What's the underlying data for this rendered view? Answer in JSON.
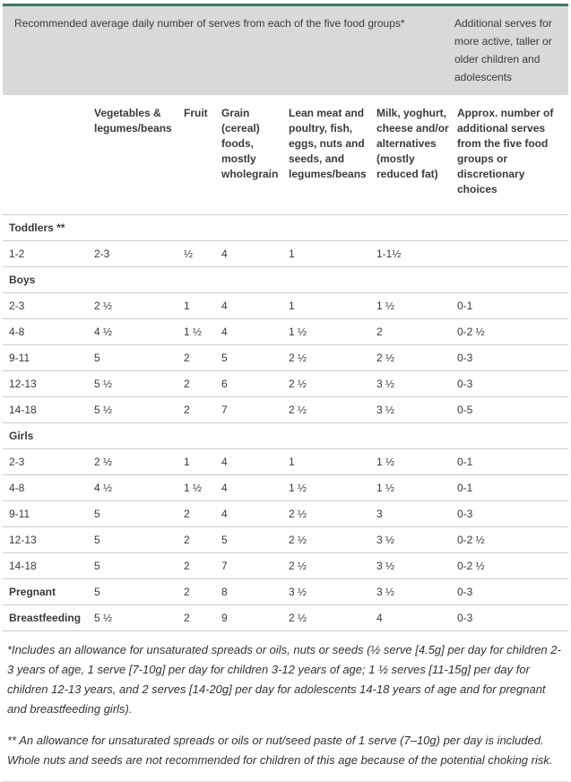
{
  "colors": {
    "accent_green": "#3f7865",
    "banner_bg": "#d9d9d9",
    "row_border": "#cbcbcb",
    "text": "#3a3a3a"
  },
  "banner": {
    "left": "Recommended average daily number of serves from each of the five food groups*",
    "right": "Additional serves for more active, taller or older children and adolescents"
  },
  "table": {
    "columns": [
      "",
      "Vegetables & legumes/beans",
      "Fruit",
      "Grain (cereal) foods, mostly wholegrain",
      "Lean meat and poultry, fish, eggs, nuts and seeds, and legumes/beans",
      "Milk, yoghurt, cheese and/or alternatives (mostly reduced fat)",
      "Approx. number of additional serves from the five food groups or discretionary choices"
    ],
    "rows": [
      {
        "type": "section",
        "label": "Toddlers **"
      },
      {
        "type": "data",
        "label": "1-2",
        "values": [
          "2-3",
          "½",
          "4",
          "1",
          "1-1½",
          ""
        ]
      },
      {
        "type": "section",
        "label": "Boys"
      },
      {
        "type": "data",
        "label": "2-3",
        "values": [
          "2 ½",
          "1",
          "4",
          "1",
          "1 ½",
          "0-1"
        ]
      },
      {
        "type": "data",
        "label": "4-8",
        "values": [
          "4 ½",
          "1 ½",
          "4",
          "1 ½",
          "2",
          "0-2 ½"
        ]
      },
      {
        "type": "data",
        "label": "9-11",
        "values": [
          "5",
          "2",
          "5",
          "2 ½",
          "2 ½",
          "0-3"
        ]
      },
      {
        "type": "data",
        "label": "12-13",
        "values": [
          "5 ½",
          "2",
          "6",
          "2 ½",
          "3 ½",
          "0-3"
        ]
      },
      {
        "type": "data",
        "label": "14-18",
        "values": [
          "5 ½",
          "2",
          "7",
          "2 ½",
          "3 ½",
          "0-5"
        ]
      },
      {
        "type": "section",
        "label": "Girls"
      },
      {
        "type": "data",
        "label": "2-3",
        "values": [
          "2 ½",
          "1",
          "4",
          "1",
          "1 ½",
          "0-1"
        ]
      },
      {
        "type": "data",
        "label": "4-8",
        "values": [
          "4 ½",
          "1 ½",
          "4",
          "1 ½",
          "1 ½",
          "0-1"
        ]
      },
      {
        "type": "data",
        "label": "9-11",
        "values": [
          "5",
          "2",
          "4",
          "2 ½",
          "3",
          "0-3"
        ]
      },
      {
        "type": "data",
        "label": "12-13",
        "values": [
          "5",
          "2",
          "5",
          "2 ½",
          "3 ½",
          "0-2 ½"
        ]
      },
      {
        "type": "data",
        "label": "14-18",
        "values": [
          "5",
          "2",
          "7",
          "2 ½",
          "3 ½",
          "0-2 ½"
        ]
      },
      {
        "type": "data",
        "label": "Pregnant",
        "bold": true,
        "values": [
          "5",
          "2",
          "8",
          "3 ½",
          "3 ½",
          "0-3"
        ]
      },
      {
        "type": "data",
        "label": "Breastfeeding",
        "bold": true,
        "values": [
          "5 ½",
          "2",
          "9",
          "2 ½",
          "4",
          "0-3"
        ]
      }
    ]
  },
  "footnotes": [
    "*Includes an allowance for unsaturated spreads or oils, nuts or seeds (½ serve [4.5g] per day for children 2-3 years of age, 1 serve [7-10g] per day for children 3-12 years of age; 1 ½ serves [11-15g] per day for children 12-13 years, and 2 serves [14-20g] per day for adolescents 14-18 years of age and for pregnant and breastfeeding girls).",
    "** An allowance for unsaturated spreads or oils or nut/seed paste of 1 serve (7–10g) per day is included. Whole nuts and seeds are not recommended for children of this age because of the potential choking risk."
  ]
}
